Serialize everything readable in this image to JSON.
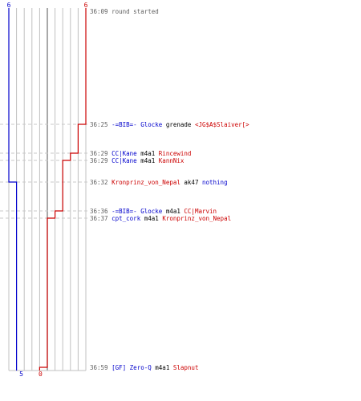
{
  "chart_data": {
    "type": "line",
    "colors": {
      "team_a": "#0000cc",
      "team_b": "#cc0000",
      "grid": "#c0c0c0",
      "guide": "#c8c8c8",
      "text": "#606060",
      "weapon": "#000000"
    },
    "team_a_start_label": "6",
    "team_b_start_label": "6",
    "team_a_end_label": "5",
    "team_b_end_label": "0",
    "x_range": [
      0,
      10
    ],
    "team_a": {
      "start": 6,
      "end": 5
    },
    "team_b": {
      "start": 6,
      "end": 0
    },
    "events": [
      {
        "time": "36:09",
        "note": "round started",
        "team_a": 6,
        "team_b": 6
      },
      {
        "time": "36:25",
        "killer": "-=BIB=- Glocke",
        "killer_team": "blue",
        "weapon": "grenade",
        "victim": "<JG$A$Slaiver[>",
        "victim_team": "red",
        "team_a": 6,
        "team_b": 5
      },
      {
        "time": "36:29",
        "killer": "CC|Kane",
        "killer_team": "blue",
        "weapon": "m4a1",
        "victim": "Rincewind",
        "victim_team": "red",
        "team_a": 6,
        "team_b": 4
      },
      {
        "time": "36:29",
        "killer": "CC|Kane",
        "killer_team": "blue",
        "weapon": "m4a1",
        "victim": "KannNix",
        "victim_team": "red",
        "team_a": 6,
        "team_b": 3
      },
      {
        "time": "36:32",
        "killer": "Kronprinz_von_Nepal",
        "killer_team": "red",
        "weapon": "ak47",
        "victim": "nothing",
        "victim_team": "blue",
        "team_a": 5,
        "team_b": 3
      },
      {
        "time": "36:36",
        "killer": "-=BIB=- Glocke",
        "killer_team": "blue",
        "weapon": "m4a1",
        "victim": "CC|Marvin",
        "victim_team": "red",
        "team_a": 5,
        "team_b": 2
      },
      {
        "time": "36:37",
        "killer": "cpt_cork",
        "killer_team": "blue",
        "weapon": "m4a1",
        "victim": "Kronprinz_von_Nepal",
        "victim_team": "red",
        "team_a": 5,
        "team_b": 1
      },
      {
        "time": "36:59",
        "killer": "[GF] Zero-Q",
        "killer_team": "blue",
        "weapon": "m4a1",
        "victim": "Slapnut",
        "victim_team": "red",
        "team_a": 5,
        "team_b": 0
      }
    ]
  }
}
